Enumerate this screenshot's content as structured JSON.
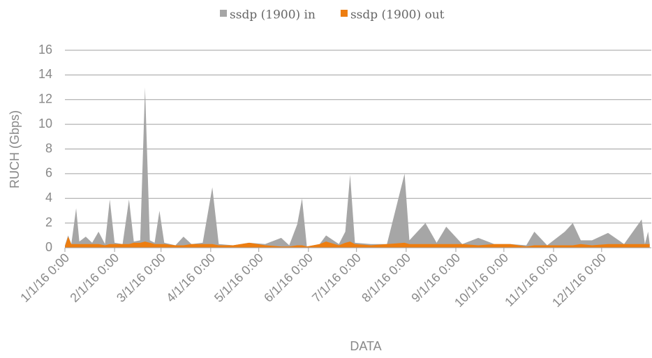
{
  "chart_data": {
    "type": "area",
    "xlabel": "DATA",
    "ylabel": "RUCH (Gbps)",
    "x": [
      "1/1/16 0:00",
      "1/3/16 0:00",
      "1/5/16 0:00",
      "1/8/16 0:00",
      "1/10/16 0:00",
      "1/14/16 0:00",
      "1/18/16 0:00",
      "1/22/16 0:00",
      "1/26/16 0:00",
      "1/29/16 0:00",
      "2/1/16 0:00",
      "2/6/16 0:00",
      "2/10/16 0:00",
      "2/13/16 0:00",
      "2/17/16 0:00",
      "2/20/16 0:00",
      "2/23/16 0:00",
      "2/26/16 0:00",
      "2/29/16 0:00",
      "3/3/16 0:00",
      "3/10/16 0:00",
      "3/15/16 0:00",
      "3/20/16 0:00",
      "3/27/16 0:00",
      "4/2/16 0:00",
      "4/6/16 0:00",
      "4/15/16 0:00",
      "4/25/16 0:00",
      "5/5/16 0:00",
      "5/15/16 0:00",
      "5/20/16 0:00",
      "5/25/16 0:00",
      "5/28/16 0:00",
      "5/31/16 0:00",
      "6/8/16 0:00",
      "6/12/16 0:00",
      "6/20/16 0:00",
      "6/24/16 0:00",
      "6/27/16 0:00",
      "6/30/16 0:00",
      "7/10/16 0:00",
      "7/20/16 0:00",
      "7/31/16 0:00",
      "8/3/16 0:00",
      "8/13/16 0:00",
      "8/20/16 0:00",
      "8/26/16 0:00",
      "9/5/16 0:00",
      "9/15/16 0:00",
      "9/25/16 0:00",
      "10/5/16 0:00",
      "10/15/16 0:00",
      "10/20/16 0:00",
      "10/28/16 0:00",
      "11/8/16 0:00",
      "11/13/16 0:00",
      "11/18/16 0:00",
      "11/25/16 0:00",
      "12/5/16 0:00",
      "12/15/16 0:00",
      "12/26/16 0:00",
      "12/28/16 0:00",
      "12/30/16 0:00",
      "12/31/16 0:00"
    ],
    "series": [
      {
        "name": "ssdp (1900) in",
        "color": "#a6a6a6",
        "values": [
          0.2,
          1.0,
          0.3,
          3.2,
          0.5,
          0.9,
          0.4,
          1.3,
          0.3,
          3.9,
          0.4,
          0.3,
          3.9,
          0.5,
          0.6,
          13,
          0.6,
          0.4,
          3.0,
          0.4,
          0.2,
          0.9,
          0.3,
          0.4,
          4.9,
          0.3,
          0.2,
          0.4,
          0.3,
          0.8,
          0.2,
          1.9,
          4.0,
          0.1,
          0.3,
          1.0,
          0.3,
          1.3,
          5.9,
          0.4,
          0.3,
          0.3,
          6.0,
          0.6,
          2.0,
          0.4,
          1.7,
          0.3,
          0.8,
          0.3,
          0.3,
          0.2,
          1.3,
          0.2,
          1.3,
          2.0,
          0.6,
          0.6,
          1.2,
          0.3,
          2.3,
          0.3,
          1.3,
          0.3
        ]
      },
      {
        "name": "ssdp (1900) out",
        "color": "#ed7d10",
        "values": [
          0.1,
          0.9,
          0.3,
          0.3,
          0.3,
          0.3,
          0.3,
          0.3,
          0.2,
          0.3,
          0.3,
          0.3,
          0.3,
          0.4,
          0.4,
          0.5,
          0.4,
          0.3,
          0.3,
          0.3,
          0.2,
          0.2,
          0.3,
          0.3,
          0.3,
          0.2,
          0.2,
          0.4,
          0.2,
          0.1,
          0.1,
          0.2,
          0.2,
          0.1,
          0.3,
          0.5,
          0.2,
          0.4,
          0.5,
          0.3,
          0.2,
          0.3,
          0.4,
          0.3,
          0.3,
          0.3,
          0.3,
          0.3,
          0.2,
          0.3,
          0.3,
          0.1,
          0.2,
          0.2,
          0.2,
          0.2,
          0.3,
          0.2,
          0.3,
          0.3,
          0.3,
          0.3,
          0.3,
          0.3
        ]
      }
    ],
    "xlim": [
      "1/1/16 0:00",
      "12/31/16 0:00"
    ],
    "xticks": [
      "1/1/16 0:00",
      "2/1/16 0:00",
      "3/1/16 0:00",
      "4/1/16 0:00",
      "5/1/16 0:00",
      "6/1/16 0:00",
      "7/1/16 0:00",
      "8/1/16 0:00",
      "9/1/16 0:00",
      "10/1/16 0:00",
      "11/1/16 0:00",
      "12/1/16 0:00"
    ],
    "ylim": [
      0,
      16
    ],
    "yticks": [
      0,
      2,
      4,
      6,
      8,
      10,
      12,
      14,
      16
    ],
    "grid": true,
    "legend": "top"
  }
}
